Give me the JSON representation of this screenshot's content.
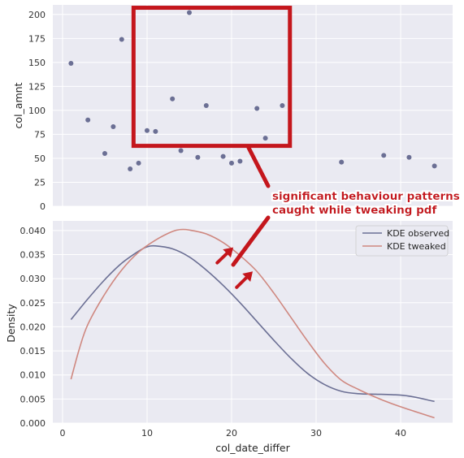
{
  "chart_data": [
    {
      "type": "scatter",
      "title": "",
      "xlabel": "",
      "ylabel": "col_amnt",
      "xlim": [
        -1.15,
        46.15
      ],
      "ylim": [
        0,
        210
      ],
      "x_ticks": [
        0,
        10,
        20,
        30,
        40
      ],
      "y_ticks": [
        0,
        25,
        50,
        75,
        100,
        125,
        150,
        175,
        200
      ],
      "grid": true,
      "marker_color": "#6b6f94",
      "points": [
        {
          "x": 1,
          "y": 149
        },
        {
          "x": 3,
          "y": 90
        },
        {
          "x": 5,
          "y": 55
        },
        {
          "x": 6,
          "y": 83
        },
        {
          "x": 7,
          "y": 174
        },
        {
          "x": 8,
          "y": 39
        },
        {
          "x": 9,
          "y": 45
        },
        {
          "x": 10,
          "y": 79
        },
        {
          "x": 11,
          "y": 78
        },
        {
          "x": 13,
          "y": 112
        },
        {
          "x": 14,
          "y": 58
        },
        {
          "x": 15,
          "y": 202
        },
        {
          "x": 16,
          "y": 51
        },
        {
          "x": 17,
          "y": 105
        },
        {
          "x": 19,
          "y": 52
        },
        {
          "x": 20,
          "y": 45
        },
        {
          "x": 21,
          "y": 47
        },
        {
          "x": 23,
          "y": 102
        },
        {
          "x": 24,
          "y": 71
        },
        {
          "x": 26,
          "y": 105
        },
        {
          "x": 33,
          "y": 46
        },
        {
          "x": 38,
          "y": 53
        },
        {
          "x": 41,
          "y": 51
        },
        {
          "x": 44,
          "y": 42
        }
      ],
      "highlight_box": {
        "x": [
          8.4,
          26.9
        ],
        "y": [
          63,
          207
        ],
        "color": "#c4161c"
      }
    },
    {
      "type": "line",
      "title": "",
      "xlabel": "col_date_differ",
      "ylabel": "Density",
      "xlim": [
        -1.15,
        46.15
      ],
      "ylim": [
        0,
        0.042
      ],
      "x_ticks": [
        0,
        10,
        20,
        30,
        40
      ],
      "y_ticks": [
        0.0,
        0.005,
        0.01,
        0.015,
        0.02,
        0.025,
        0.03,
        0.035,
        0.04
      ],
      "y_tick_labels": [
        "0.000",
        "0.005",
        "0.010",
        "0.015",
        "0.020",
        "0.025",
        "0.030",
        "0.035",
        "0.040"
      ],
      "grid": true,
      "legend": "top-right",
      "series": [
        {
          "name": "KDE observed",
          "color": "#6b6f94",
          "x": [
            1,
            3,
            5,
            7,
            9,
            10,
            11,
            13,
            15,
            17,
            19,
            21,
            23,
            25,
            27,
            29,
            31,
            33,
            35,
            37,
            39,
            41,
            44
          ],
          "y": [
            0.0215,
            0.0258,
            0.0298,
            0.0332,
            0.0357,
            0.0366,
            0.0368,
            0.0362,
            0.0345,
            0.0318,
            0.0286,
            0.025,
            0.0211,
            0.0172,
            0.0135,
            0.0103,
            0.008,
            0.0066,
            0.0061,
            0.006,
            0.0059,
            0.0056,
            0.0045
          ]
        },
        {
          "name": "KDE tweaked",
          "color": "#cf8880",
          "x": [
            1,
            2,
            3,
            5,
            7,
            9,
            11,
            13,
            14,
            15,
            17,
            19,
            21,
            23,
            25,
            27,
            29,
            31,
            33,
            35,
            37,
            39,
            41,
            44
          ],
          "y": [
            0.0091,
            0.0155,
            0.0205,
            0.0268,
            0.0318,
            0.0355,
            0.038,
            0.0398,
            0.0402,
            0.0401,
            0.0393,
            0.0375,
            0.0348,
            0.0315,
            0.027,
            0.022,
            0.017,
            0.0124,
            0.0089,
            0.007,
            0.0054,
            0.004,
            0.0028,
            0.0011
          ]
        }
      ],
      "arrows": [
        {
          "from": [
            18.3,
            0.0333
          ],
          "to": [
            20.2,
            0.0365
          ]
        },
        {
          "from": [
            20.6,
            0.0282
          ],
          "to": [
            22.5,
            0.0315
          ]
        }
      ]
    }
  ],
  "annotation": {
    "lines": [
      "significant behaviour patterns",
      "caught while tweaking pdf"
    ],
    "color": "#c4161c"
  }
}
